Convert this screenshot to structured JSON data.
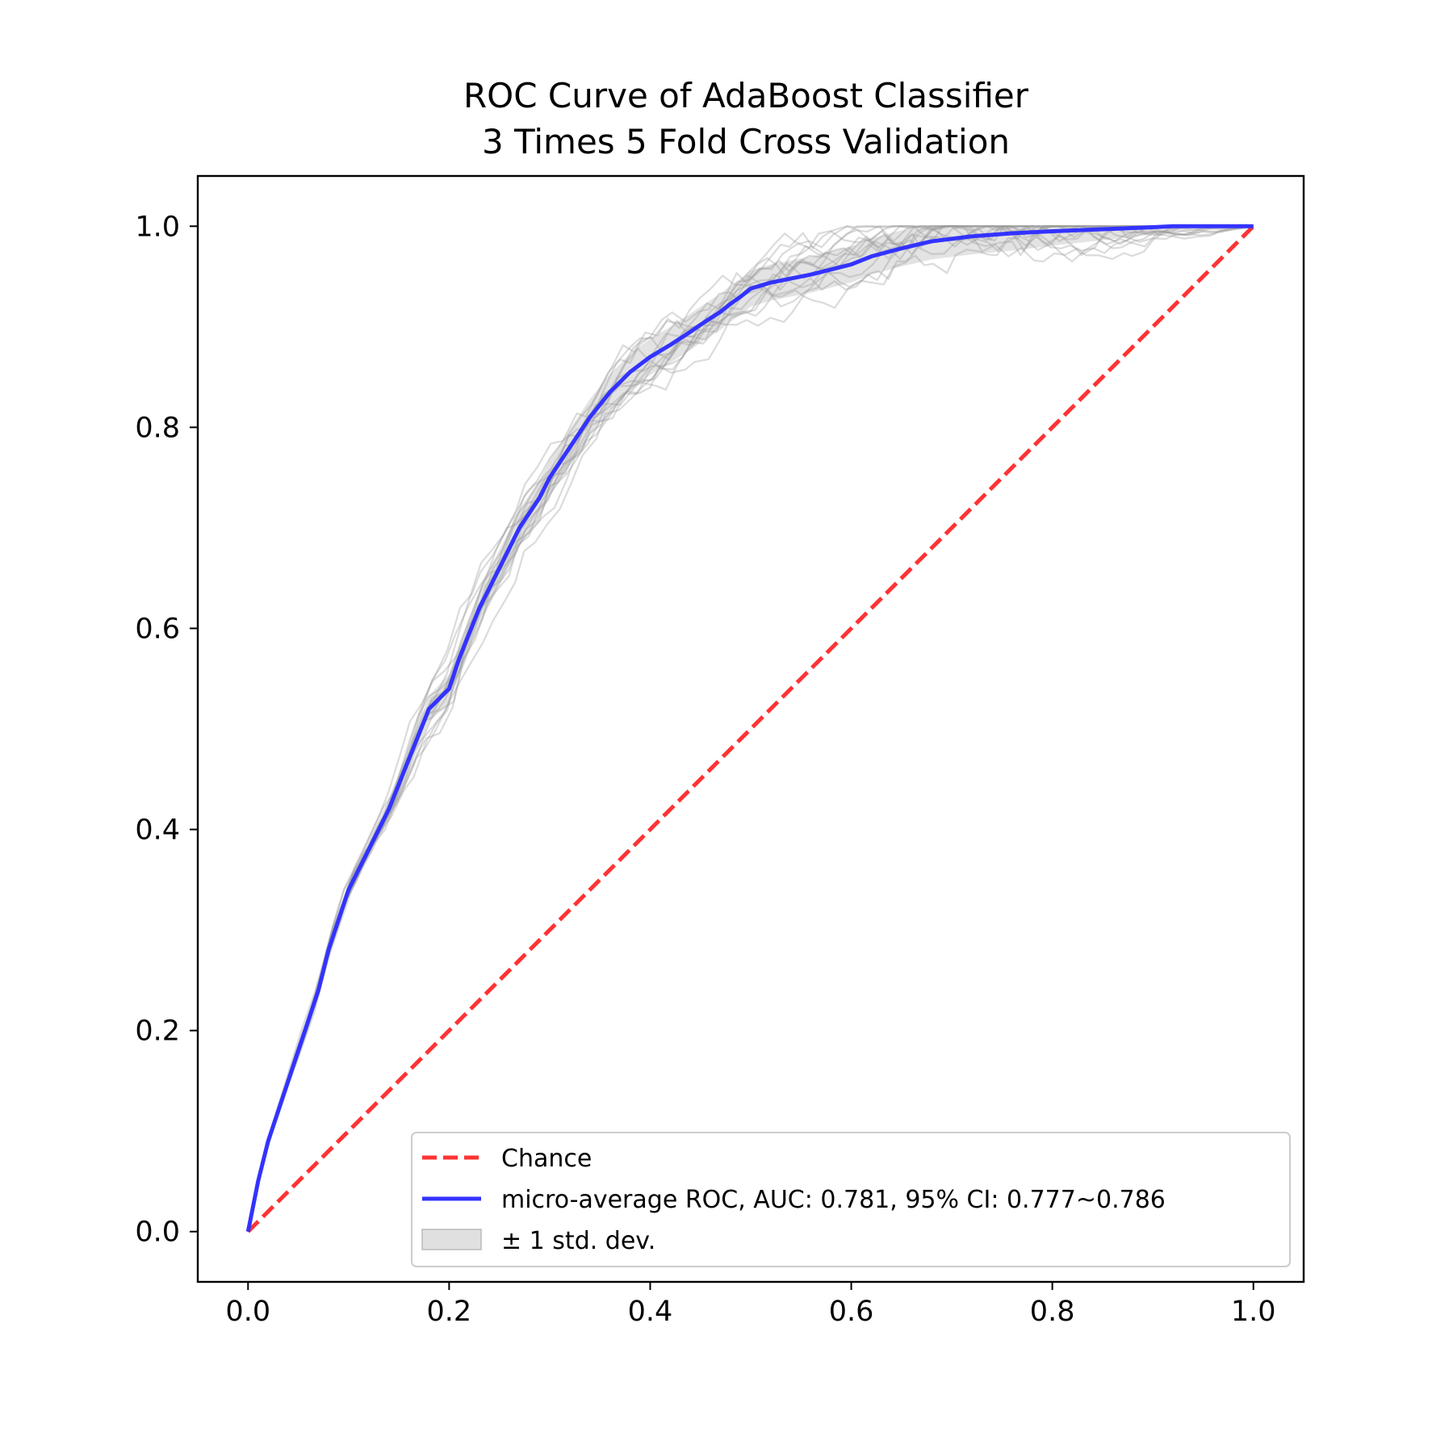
{
  "chart_data": {
    "type": "line",
    "title": "ROC Curve of AdaBoost Classifier",
    "subtitle": "3 Times 5 Fold Cross Validation",
    "xlabel": "",
    "ylabel": "",
    "xlim": [
      -0.05,
      1.05
    ],
    "ylim": [
      -0.05,
      1.05
    ],
    "x_ticks": [
      "0.0",
      "0.2",
      "0.4",
      "0.6",
      "0.8",
      "1.0"
    ],
    "y_ticks": [
      "0.0",
      "0.2",
      "0.4",
      "0.6",
      "0.8",
      "1.0"
    ],
    "grid": false,
    "legend_position": "lower-right",
    "colors": {
      "chance": "#ff3333",
      "mean": "#3333ff",
      "folds": "#999999",
      "band": "#cccccc"
    },
    "series": [
      {
        "name": "Chance",
        "style": "dashed",
        "x": [
          0,
          1
        ],
        "y": [
          0,
          1
        ]
      },
      {
        "name": "micro-average ROC, AUC: 0.781, 95% CI: 0.777~0.786",
        "style": "solid",
        "x": [
          0,
          0.01,
          0.02,
          0.04,
          0.06,
          0.07,
          0.08,
          0.09,
          0.1,
          0.12,
          0.13,
          0.14,
          0.16,
          0.18,
          0.2,
          0.21,
          0.23,
          0.25,
          0.27,
          0.29,
          0.3,
          0.32,
          0.34,
          0.36,
          0.38,
          0.4,
          0.42,
          0.44,
          0.45,
          0.47,
          0.48,
          0.49,
          0.5,
          0.52,
          0.54,
          0.56,
          0.58,
          0.6,
          0.62,
          0.65,
          0.68,
          0.72,
          0.76,
          0.8,
          0.85,
          0.9,
          0.92,
          0.95,
          1.0
        ],
        "y": [
          0,
          0.05,
          0.09,
          0.15,
          0.21,
          0.24,
          0.28,
          0.31,
          0.34,
          0.38,
          0.4,
          0.42,
          0.47,
          0.52,
          0.54,
          0.57,
          0.62,
          0.66,
          0.7,
          0.73,
          0.75,
          0.78,
          0.81,
          0.835,
          0.855,
          0.87,
          0.882,
          0.895,
          0.902,
          0.915,
          0.923,
          0.93,
          0.938,
          0.944,
          0.948,
          0.952,
          0.957,
          0.962,
          0.97,
          0.978,
          0.985,
          0.99,
          0.993,
          0.995,
          0.997,
          0.999,
          1.0,
          1.0,
          1.0
        ]
      }
    ],
    "band_label": "± 1 std. dev.",
    "band_std": 0.018,
    "fold_count": 15
  }
}
